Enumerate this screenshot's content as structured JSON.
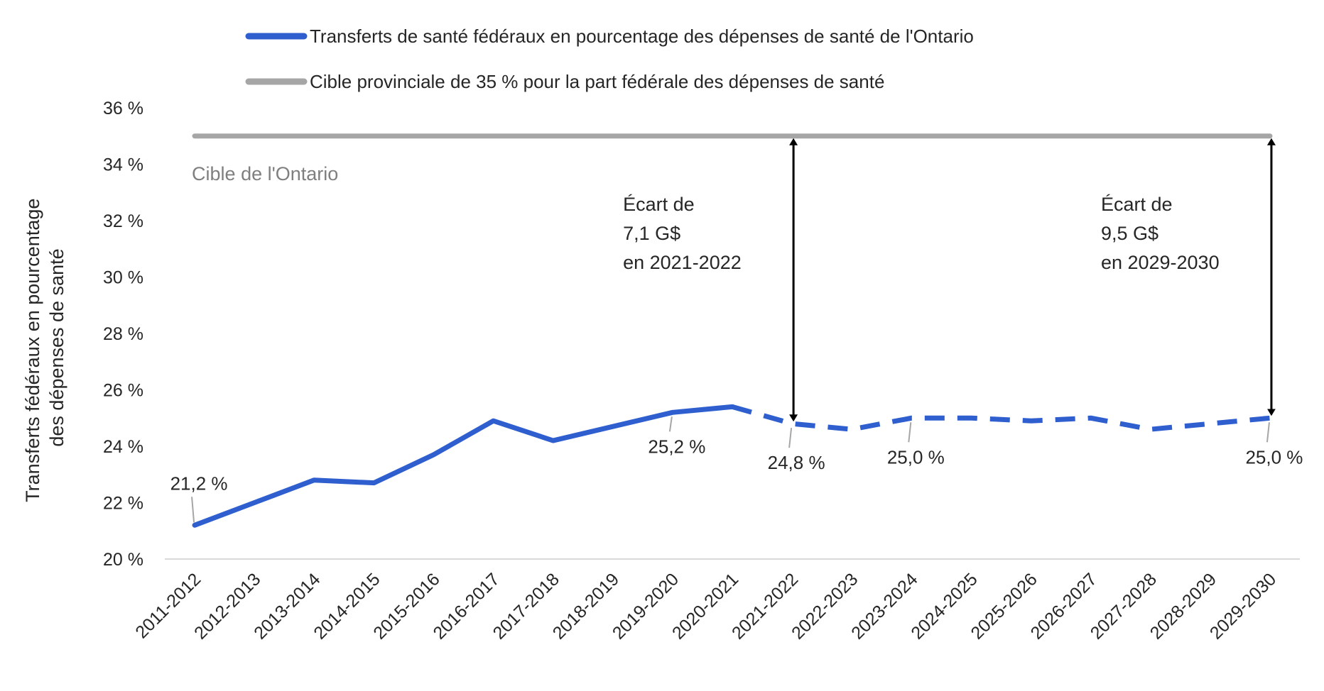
{
  "chart_data": {
    "type": "line",
    "categories": [
      "2011-2012",
      "2012-2013",
      "2013-2014",
      "2014-2015",
      "2015-2016",
      "2016-2017",
      "2017-2018",
      "2018-2019",
      "2019-2020",
      "2020-2021",
      "2021-2022",
      "2022-2023",
      "2023-2024",
      "2024-2025",
      "2025-2026",
      "2026-2027",
      "2027-2028",
      "2028-2029",
      "2029-2030"
    ],
    "series": [
      {
        "name": "Transferts de santé fédéraux en pourcentage des dépenses de santé de l'Ontario",
        "color": "#2f5fcf",
        "values": [
          21.2,
          22.0,
          22.8,
          22.7,
          23.7,
          24.9,
          24.2,
          24.7,
          25.2,
          25.4,
          24.8,
          24.6,
          25.0,
          25.0,
          24.9,
          25.0,
          24.6,
          24.8,
          25.0
        ],
        "dashed_from_index": 9
      },
      {
        "name": "Cible provinciale de 35 % pour la part fédérale des dépenses de santé",
        "color": "#a6a6a6",
        "values": [
          35,
          35,
          35,
          35,
          35,
          35,
          35,
          35,
          35,
          35,
          35,
          35,
          35,
          35,
          35,
          35,
          35,
          35,
          35
        ]
      }
    ],
    "ylim": [
      20,
      36
    ],
    "yticks": [
      20,
      22,
      24,
      26,
      28,
      30,
      32,
      34,
      36
    ],
    "ytick_labels": [
      "20 %",
      "22 %",
      "24 %",
      "26 %",
      "28 %",
      "30 %",
      "32 %",
      "34 %",
      "36 %"
    ],
    "ylabel_lines": [
      "Transferts fédéraux en pourcentage",
      "des dépenses de santé"
    ],
    "xlabel": "",
    "legend_position": "top",
    "target_label": "Cible de l'Ontario",
    "data_labels": [
      {
        "index": 0,
        "text": "21,2 %"
      },
      {
        "index": 8,
        "text": "25,2 %"
      },
      {
        "index": 10,
        "text": "24,8 %"
      },
      {
        "index": 12,
        "text": "25,0 %"
      },
      {
        "index": 18,
        "text": "25,0 %"
      }
    ],
    "gap_annotations": [
      {
        "index": 10,
        "lines": [
          "Écart de",
          "7,1 G$",
          "en 2021-2022"
        ]
      },
      {
        "index": 18,
        "lines": [
          "Écart de",
          "9,5 G$",
          "en 2029-2030"
        ]
      }
    ]
  }
}
